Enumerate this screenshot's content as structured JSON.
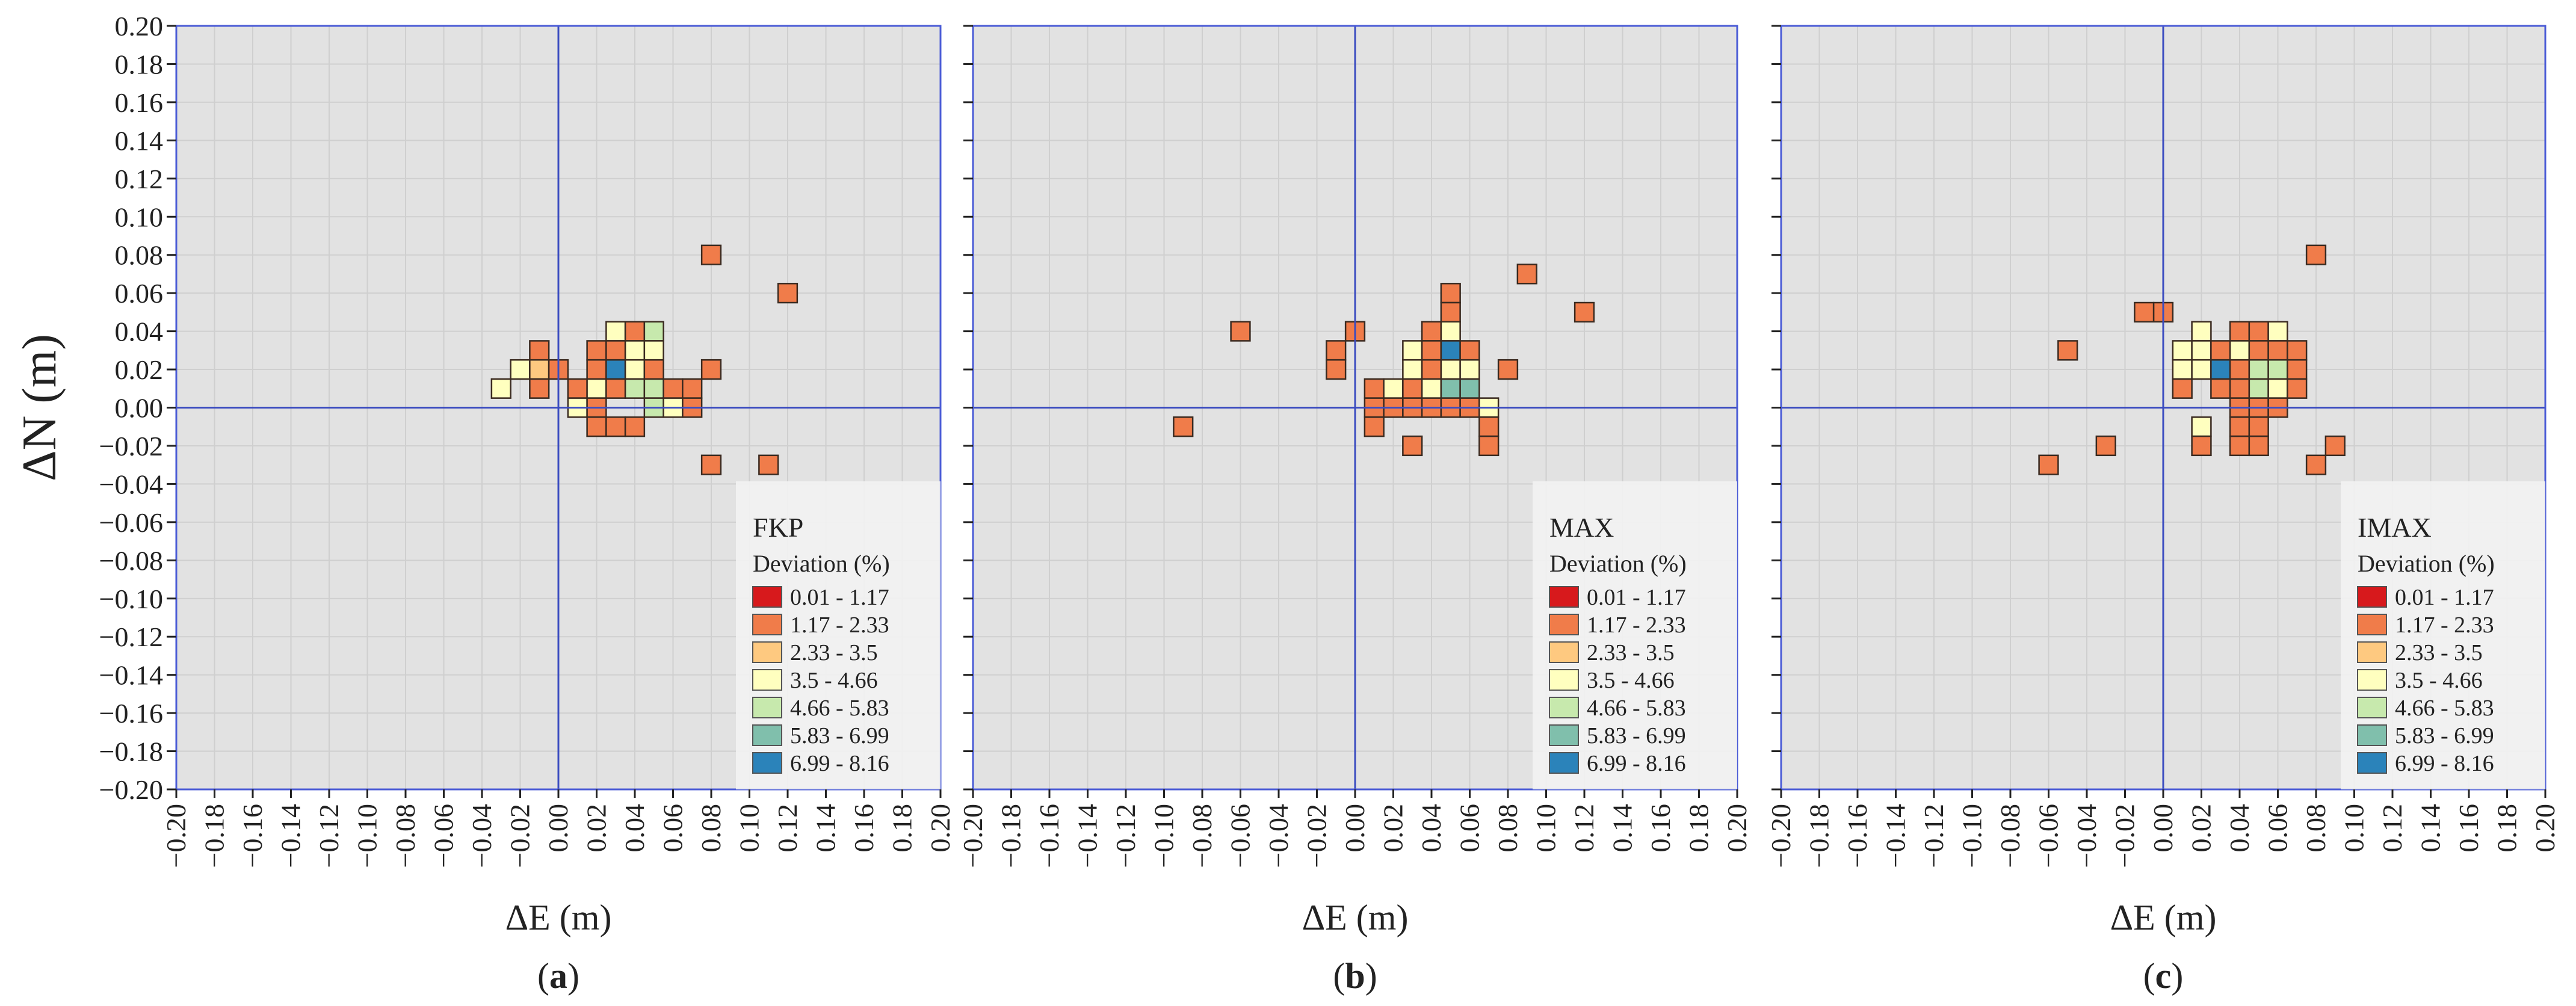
{
  "figure": {
    "y_axis_label": "ΔN (m)",
    "legend_title": "Deviation (%)"
  },
  "legend_classes": [
    {
      "label": "0.01 - 1.17",
      "color": "#d7191c"
    },
    {
      "label": "1.17 - 2.33",
      "color": "#f07c4a"
    },
    {
      "label": "2.33 - 3.5",
      "color": "#fec980"
    },
    {
      "label": "3.5 - 4.66",
      "color": "#ffffbf"
    },
    {
      "label": "4.66 - 5.83",
      "color": "#c7e9ad"
    },
    {
      "label": "5.83 - 6.99",
      "color": "#80bfac"
    },
    {
      "label": "6.99 - 8.16",
      "color": "#2b83ba"
    }
  ],
  "colors": {
    "plot_background": "#e2e2e2",
    "axis_line": "#3b4cc0",
    "frame": "#4a5bd6",
    "grid": "#cfcfcf",
    "cell_stroke": "#3a2a20"
  },
  "chart_data": [
    {
      "type": "heatmap",
      "panel_label": "(a)",
      "legend_title": "FKP",
      "xlabel": "ΔE (m)",
      "ylabel": "ΔN (m)",
      "xlim": [
        -0.2,
        0.2
      ],
      "ylim": [
        -0.2,
        0.2
      ],
      "cell_size_m": 0.01,
      "xticks": [
        "−0.20",
        "−0.18",
        "−0.16",
        "−0.14",
        "−0.12",
        "−0.10",
        "−0.08",
        "−0.06",
        "−0.04",
        "−0.02",
        "0.00",
        "0.02",
        "0.04",
        "0.06",
        "0.08",
        "0.10",
        "0.12",
        "0.14",
        "0.16",
        "0.18",
        "0.20"
      ],
      "yticks": [
        "0.20",
        "0.18",
        "0.16",
        "0.14",
        "0.12",
        "0.10",
        "0.08",
        "0.06",
        "0.04",
        "0.02",
        "0.00",
        "−0.02",
        "−0.04",
        "−0.06",
        "−0.08",
        "−0.10",
        "−0.12",
        "−0.14",
        "−0.16",
        "−0.18",
        "−0.20"
      ],
      "cells": [
        {
          "e": 0.08,
          "n": 0.08,
          "class": 1
        },
        {
          "e": 0.12,
          "n": 0.06,
          "class": 1
        },
        {
          "e": 0.03,
          "n": 0.04,
          "class": 3
        },
        {
          "e": 0.04,
          "n": 0.04,
          "class": 1
        },
        {
          "e": 0.05,
          "n": 0.04,
          "class": 4
        },
        {
          "e": -0.01,
          "n": 0.03,
          "class": 1
        },
        {
          "e": 0.02,
          "n": 0.03,
          "class": 1
        },
        {
          "e": 0.03,
          "n": 0.03,
          "class": 1
        },
        {
          "e": 0.04,
          "n": 0.03,
          "class": 3
        },
        {
          "e": 0.05,
          "n": 0.03,
          "class": 3
        },
        {
          "e": -0.02,
          "n": 0.02,
          "class": 3
        },
        {
          "e": -0.01,
          "n": 0.02,
          "class": 2
        },
        {
          "e": 0.0,
          "n": 0.02,
          "class": 1
        },
        {
          "e": 0.02,
          "n": 0.02,
          "class": 1
        },
        {
          "e": 0.03,
          "n": 0.02,
          "class": 6
        },
        {
          "e": 0.04,
          "n": 0.02,
          "class": 3
        },
        {
          "e": 0.05,
          "n": 0.02,
          "class": 1
        },
        {
          "e": 0.08,
          "n": 0.02,
          "class": 1
        },
        {
          "e": -0.03,
          "n": 0.01,
          "class": 3
        },
        {
          "e": -0.01,
          "n": 0.01,
          "class": 1
        },
        {
          "e": 0.01,
          "n": 0.01,
          "class": 1
        },
        {
          "e": 0.02,
          "n": 0.01,
          "class": 3
        },
        {
          "e": 0.03,
          "n": 0.01,
          "class": 1
        },
        {
          "e": 0.04,
          "n": 0.01,
          "class": 4
        },
        {
          "e": 0.05,
          "n": 0.01,
          "class": 4
        },
        {
          "e": 0.06,
          "n": 0.01,
          "class": 1
        },
        {
          "e": 0.07,
          "n": 0.01,
          "class": 1
        },
        {
          "e": 0.01,
          "n": 0.0,
          "class": 3
        },
        {
          "e": 0.02,
          "n": 0.0,
          "class": 1
        },
        {
          "e": 0.05,
          "n": 0.0,
          "class": 4
        },
        {
          "e": 0.06,
          "n": 0.0,
          "class": 3
        },
        {
          "e": 0.07,
          "n": 0.0,
          "class": 1
        },
        {
          "e": 0.02,
          "n": -0.01,
          "class": 1
        },
        {
          "e": 0.03,
          "n": -0.01,
          "class": 1
        },
        {
          "e": 0.04,
          "n": -0.01,
          "class": 1
        },
        {
          "e": 0.08,
          "n": -0.03,
          "class": 1
        },
        {
          "e": 0.11,
          "n": -0.03,
          "class": 1
        }
      ]
    },
    {
      "type": "heatmap",
      "panel_label": "(b)",
      "legend_title": "MAX",
      "xlabel": "ΔE (m)",
      "ylabel": "",
      "xlim": [
        -0.2,
        0.2
      ],
      "ylim": [
        -0.2,
        0.2
      ],
      "cell_size_m": 0.01,
      "xticks": [
        "−0.20",
        "−0.18",
        "−0.16",
        "−0.14",
        "−0.12",
        "−0.10",
        "−0.08",
        "−0.06",
        "−0.04",
        "−0.02",
        "0.00",
        "0.02",
        "0.04",
        "0.06",
        "0.08",
        "0.10",
        "0.12",
        "0.14",
        "0.16",
        "0.18",
        "0.20"
      ],
      "cells": [
        {
          "e": 0.09,
          "n": 0.07,
          "class": 1
        },
        {
          "e": 0.05,
          "n": 0.06,
          "class": 1
        },
        {
          "e": 0.05,
          "n": 0.05,
          "class": 1
        },
        {
          "e": 0.12,
          "n": 0.05,
          "class": 1
        },
        {
          "e": -0.06,
          "n": 0.04,
          "class": 1
        },
        {
          "e": 0.0,
          "n": 0.04,
          "class": 1
        },
        {
          "e": 0.04,
          "n": 0.04,
          "class": 1
        },
        {
          "e": 0.05,
          "n": 0.04,
          "class": 3
        },
        {
          "e": -0.01,
          "n": 0.03,
          "class": 1
        },
        {
          "e": 0.03,
          "n": 0.03,
          "class": 3
        },
        {
          "e": 0.04,
          "n": 0.03,
          "class": 1
        },
        {
          "e": 0.05,
          "n": 0.03,
          "class": 6
        },
        {
          "e": 0.06,
          "n": 0.03,
          "class": 1
        },
        {
          "e": -0.01,
          "n": 0.02,
          "class": 1
        },
        {
          "e": 0.03,
          "n": 0.02,
          "class": 3
        },
        {
          "e": 0.04,
          "n": 0.02,
          "class": 1
        },
        {
          "e": 0.05,
          "n": 0.02,
          "class": 3
        },
        {
          "e": 0.06,
          "n": 0.02,
          "class": 3
        },
        {
          "e": 0.08,
          "n": 0.02,
          "class": 1
        },
        {
          "e": 0.01,
          "n": 0.01,
          "class": 1
        },
        {
          "e": 0.02,
          "n": 0.01,
          "class": 3
        },
        {
          "e": 0.03,
          "n": 0.01,
          "class": 1
        },
        {
          "e": 0.04,
          "n": 0.01,
          "class": 3
        },
        {
          "e": 0.05,
          "n": 0.01,
          "class": 5
        },
        {
          "e": 0.06,
          "n": 0.01,
          "class": 5
        },
        {
          "e": 0.01,
          "n": 0.0,
          "class": 1
        },
        {
          "e": 0.02,
          "n": 0.0,
          "class": 1
        },
        {
          "e": 0.03,
          "n": 0.0,
          "class": 1
        },
        {
          "e": 0.04,
          "n": 0.0,
          "class": 1
        },
        {
          "e": 0.05,
          "n": 0.0,
          "class": 1
        },
        {
          "e": 0.06,
          "n": 0.0,
          "class": 1
        },
        {
          "e": 0.07,
          "n": 0.0,
          "class": 3
        },
        {
          "e": -0.09,
          "n": -0.01,
          "class": 1
        },
        {
          "e": 0.01,
          "n": -0.01,
          "class": 1
        },
        {
          "e": 0.07,
          "n": -0.01,
          "class": 1
        },
        {
          "e": 0.03,
          "n": -0.02,
          "class": 1
        },
        {
          "e": 0.07,
          "n": -0.02,
          "class": 1
        }
      ]
    },
    {
      "type": "heatmap",
      "panel_label": "(c)",
      "legend_title": "IMAX",
      "xlabel": "ΔE (m)",
      "ylabel": "",
      "xlim": [
        -0.2,
        0.2
      ],
      "ylim": [
        -0.2,
        0.2
      ],
      "cell_size_m": 0.01,
      "xticks": [
        "−0.20",
        "−0.18",
        "−0.16",
        "−0.14",
        "−0.12",
        "−0.10",
        "−0.08",
        "−0.06",
        "−0.04",
        "−0.02",
        "0.00",
        "0.02",
        "0.04",
        "0.06",
        "0.08",
        "0.10",
        "0.12",
        "0.14",
        "0.16",
        "0.18",
        "0.20"
      ],
      "cells": [
        {
          "e": 0.08,
          "n": 0.08,
          "class": 1
        },
        {
          "e": -0.01,
          "n": 0.05,
          "class": 1
        },
        {
          "e": 0.0,
          "n": 0.05,
          "class": 1
        },
        {
          "e": 0.02,
          "n": 0.04,
          "class": 3
        },
        {
          "e": 0.04,
          "n": 0.04,
          "class": 1
        },
        {
          "e": 0.05,
          "n": 0.04,
          "class": 1
        },
        {
          "e": 0.06,
          "n": 0.04,
          "class": 3
        },
        {
          "e": -0.05,
          "n": 0.03,
          "class": 1
        },
        {
          "e": 0.01,
          "n": 0.03,
          "class": 3
        },
        {
          "e": 0.02,
          "n": 0.03,
          "class": 3
        },
        {
          "e": 0.03,
          "n": 0.03,
          "class": 1
        },
        {
          "e": 0.04,
          "n": 0.03,
          "class": 3
        },
        {
          "e": 0.05,
          "n": 0.03,
          "class": 1
        },
        {
          "e": 0.06,
          "n": 0.03,
          "class": 1
        },
        {
          "e": 0.07,
          "n": 0.03,
          "class": 1
        },
        {
          "e": 0.01,
          "n": 0.02,
          "class": 3
        },
        {
          "e": 0.02,
          "n": 0.02,
          "class": 3
        },
        {
          "e": 0.03,
          "n": 0.02,
          "class": 6
        },
        {
          "e": 0.04,
          "n": 0.02,
          "class": 1
        },
        {
          "e": 0.05,
          "n": 0.02,
          "class": 4
        },
        {
          "e": 0.06,
          "n": 0.02,
          "class": 4
        },
        {
          "e": 0.07,
          "n": 0.02,
          "class": 1
        },
        {
          "e": 0.01,
          "n": 0.01,
          "class": 1
        },
        {
          "e": 0.03,
          "n": 0.01,
          "class": 1
        },
        {
          "e": 0.04,
          "n": 0.01,
          "class": 1
        },
        {
          "e": 0.05,
          "n": 0.01,
          "class": 4
        },
        {
          "e": 0.06,
          "n": 0.01,
          "class": 3
        },
        {
          "e": 0.07,
          "n": 0.01,
          "class": 1
        },
        {
          "e": 0.04,
          "n": 0.0,
          "class": 1
        },
        {
          "e": 0.05,
          "n": 0.0,
          "class": 1
        },
        {
          "e": 0.06,
          "n": 0.0,
          "class": 1
        },
        {
          "e": 0.02,
          "n": -0.01,
          "class": 3
        },
        {
          "e": 0.04,
          "n": -0.01,
          "class": 1
        },
        {
          "e": 0.05,
          "n": -0.01,
          "class": 1
        },
        {
          "e": -0.03,
          "n": -0.02,
          "class": 1
        },
        {
          "e": 0.02,
          "n": -0.02,
          "class": 1
        },
        {
          "e": 0.04,
          "n": -0.02,
          "class": 1
        },
        {
          "e": 0.05,
          "n": -0.02,
          "class": 1
        },
        {
          "e": 0.09,
          "n": -0.02,
          "class": 1
        },
        {
          "e": -0.06,
          "n": -0.03,
          "class": 1
        },
        {
          "e": 0.08,
          "n": -0.03,
          "class": 1
        }
      ]
    }
  ]
}
